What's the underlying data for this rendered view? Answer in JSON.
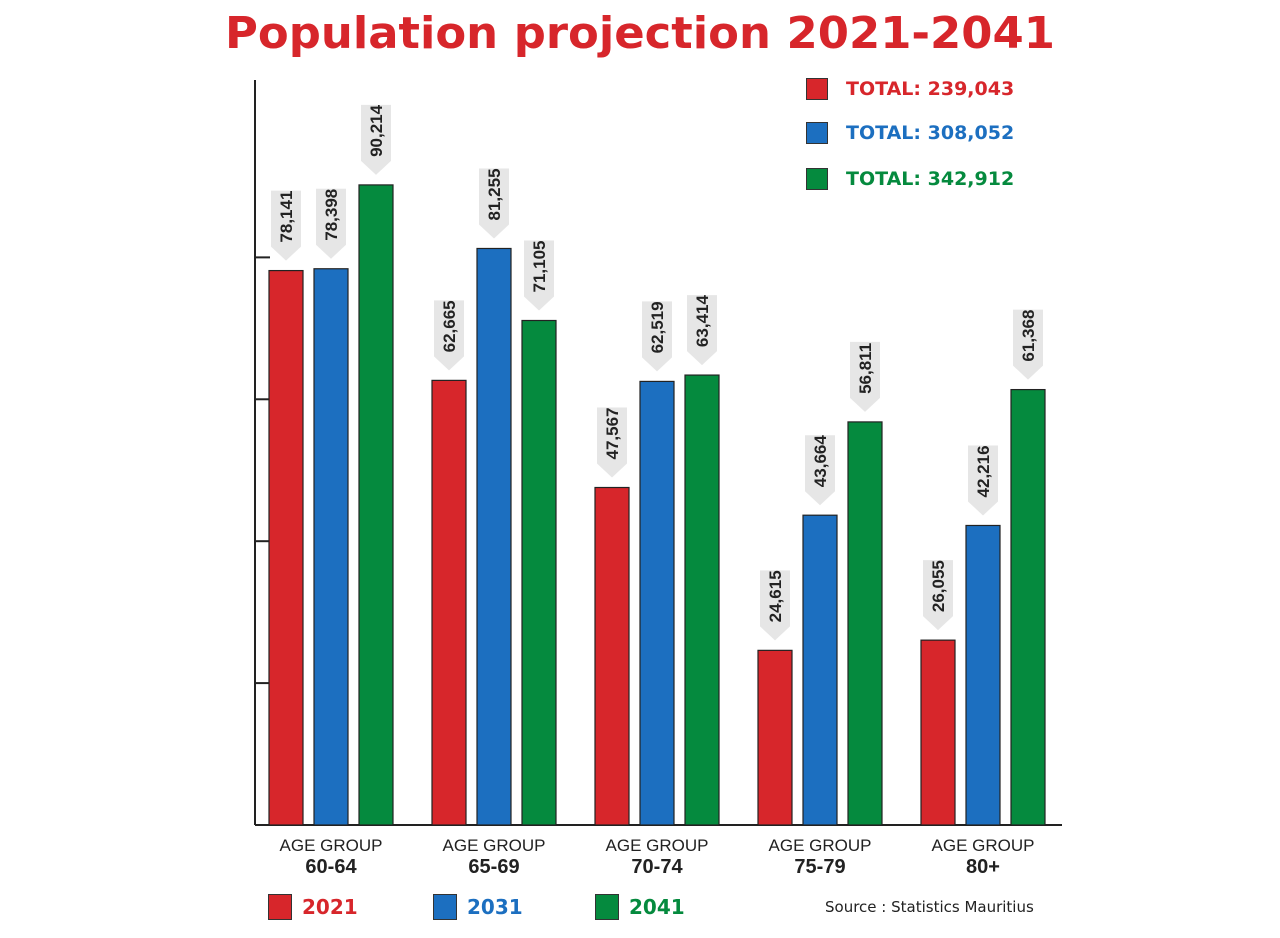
{
  "chart_data": {
    "type": "bar",
    "title": "Population projection 2021-2041",
    "categories": [
      {
        "line1": "AGE GROUP",
        "line2": "60-64"
      },
      {
        "line1": "AGE GROUP",
        "line2": "65-69"
      },
      {
        "line1": "AGE GROUP",
        "line2": "70-74"
      },
      {
        "line1": "AGE GROUP",
        "line2": "75-79"
      },
      {
        "line1": "AGE GROUP",
        "line2": "80+"
      }
    ],
    "series": [
      {
        "name": "2021",
        "color": "#d7262b",
        "total_label": "TOTAL: 239,043",
        "values": [
          78141,
          62665,
          47567,
          24615,
          26055
        ],
        "labels": [
          "78,141",
          "62,665",
          "47,567",
          "24,615",
          "26,055"
        ]
      },
      {
        "name": "2031",
        "color": "#1c6fc0",
        "total_label": "TOTAL: 308,052",
        "values": [
          78398,
          81255,
          62519,
          43664,
          42216
        ],
        "labels": [
          "78,398",
          "81,255",
          "62,519",
          "43,664",
          "42,216"
        ]
      },
      {
        "name": "2041",
        "color": "#058a3e",
        "total_label": "TOTAL: 342,912",
        "values": [
          90214,
          71105,
          63414,
          56811,
          61368
        ],
        "labels": [
          "90,214",
          "71,105",
          "63,414",
          "56,811",
          "61,368"
        ]
      }
    ],
    "ylim": [
      0,
      105000
    ],
    "yticks_unlabeled": [
      20000,
      40000,
      60000,
      80000
    ],
    "grid": false,
    "legend_placement": "top-right and bottom",
    "source": "Source : Statistics Mauritius"
  }
}
